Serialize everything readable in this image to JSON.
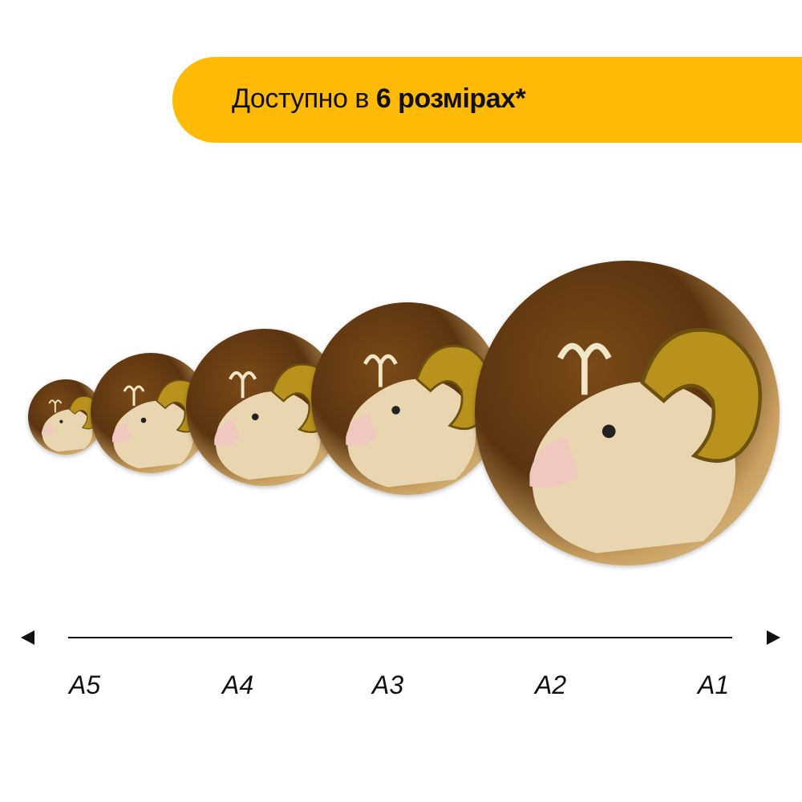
{
  "banner": {
    "text_regular": "Доступно в ",
    "text_bold": "6 розмірах*",
    "color": "#FFBA08"
  },
  "puzzles": [
    {
      "name": "A5"
    },
    {
      "name": "A4"
    },
    {
      "name": "A3"
    },
    {
      "name": "A2"
    },
    {
      "name": "A1"
    }
  ],
  "axis": {
    "left_arrow": "arrow-left-icon",
    "right_arrow": "arrow-right-icon"
  },
  "size_labels": [
    "A5",
    "A4",
    "A3",
    "A2",
    "A1"
  ]
}
